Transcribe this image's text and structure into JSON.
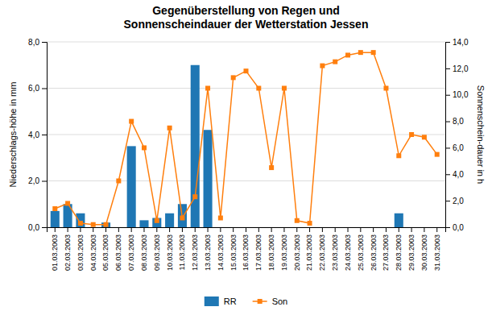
{
  "chart_data": {
    "type": "bar",
    "title": "Gegenüberstellung von Regen und\nSonnenscheindauer der Wetterstation Jessen",
    "categories": [
      "01.03.2003",
      "02.03.2003",
      "03.03.2003",
      "04.03.2003",
      "05.03.2003",
      "06.03.2003",
      "07.03.2003",
      "08.03.2003",
      "09.03.2003",
      "10.03.2003",
      "11.03.2003",
      "12.03.2003",
      "13.03.2003",
      "14.03.2003",
      "15.03.2003",
      "16.03.2003",
      "17.03.2003",
      "18.03.2003",
      "19.03.2003",
      "20.03.2003",
      "21.03.2003",
      "22.03.2003",
      "23.03.2003",
      "24.03.2003",
      "25.03.2003",
      "26.03.2003",
      "27.03.2003",
      "28.03.2003",
      "29.03.2003",
      "30.03.2003",
      "31.03.2003"
    ],
    "series": [
      {
        "name": "RR",
        "type": "bar",
        "values": [
          0.7,
          1.0,
          0.6,
          0.0,
          0.2,
          0.0,
          3.5,
          0.3,
          0.4,
          0.6,
          1.0,
          7.0,
          4.2,
          0.0,
          0.0,
          0.0,
          0.0,
          0.0,
          0.0,
          0.0,
          0.0,
          0.0,
          0.0,
          0.0,
          0.0,
          0.0,
          0.0,
          0.6,
          0.0,
          0.0,
          0.0
        ]
      },
      {
        "name": "Son",
        "type": "line",
        "axis": "y2",
        "marker": "square",
        "values": [
          1.4,
          1.8,
          0.3,
          0.2,
          0.2,
          3.5,
          8.0,
          6.0,
          0.5,
          7.5,
          0.7,
          2.3,
          10.5,
          0.7,
          11.3,
          11.8,
          10.5,
          4.5,
          10.5,
          0.5,
          0.3,
          12.2,
          12.5,
          13.0,
          13.2,
          13.2,
          10.5,
          5.4,
          7.0,
          6.8,
          5.5
        ]
      }
    ],
    "ylabel": "Niederschlags-höhe in mm",
    "y2label": "Sonnenschein-dauer in h",
    "ylim": [
      0.0,
      8.0
    ],
    "yticks": [
      {
        "value": 0.0,
        "label": "0,0"
      },
      {
        "value": 2.0,
        "label": "2,0"
      },
      {
        "value": 4.0,
        "label": "4,0"
      },
      {
        "value": 6.0,
        "label": "6,0"
      },
      {
        "value": 8.0,
        "label": "8,0"
      }
    ],
    "y2lim": [
      0.0,
      14.0
    ],
    "y2ticks": [
      {
        "value": 0.0,
        "label": "0,0"
      },
      {
        "value": 2.0,
        "label": "2,0"
      },
      {
        "value": 4.0,
        "label": "4,0"
      },
      {
        "value": 6.0,
        "label": "6,0"
      },
      {
        "value": 8.0,
        "label": "8,0"
      },
      {
        "value": 10.0,
        "label": "10,0"
      },
      {
        "value": 12.0,
        "label": "12,0"
      },
      {
        "value": 14.0,
        "label": "14,0"
      }
    ],
    "grid": true,
    "legend": "bottom"
  }
}
